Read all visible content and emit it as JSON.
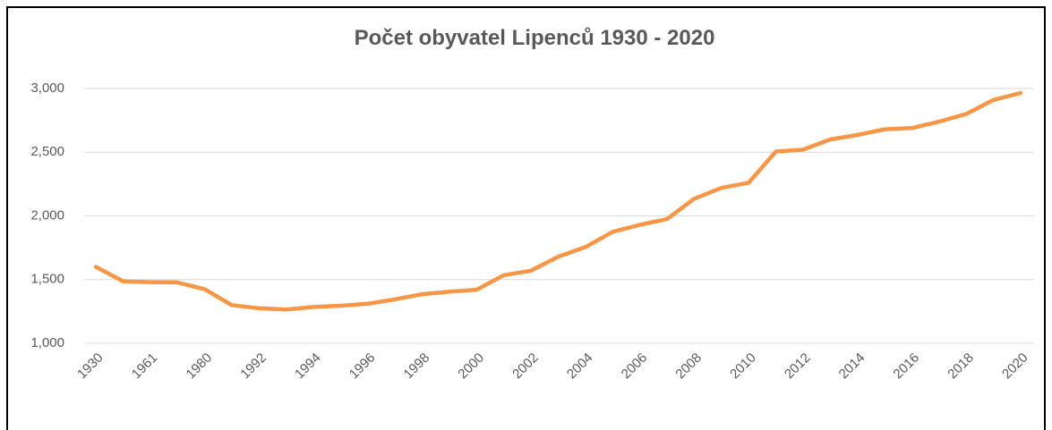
{
  "chart_data": {
    "type": "line",
    "title": "Počet obyvatel Lipenců 1930 - 2020",
    "categories": [
      "1930",
      null,
      "1961",
      null,
      "1980",
      null,
      "1992",
      null,
      "1994",
      null,
      "1996",
      null,
      "1998",
      null,
      "2000",
      null,
      "2002",
      null,
      "2004",
      null,
      "2006",
      null,
      "2008",
      null,
      "2010",
      null,
      "2012",
      null,
      "2014",
      null,
      "2016",
      null,
      "2018",
      null,
      "2020"
    ],
    "series": [
      {
        "name": "Počet obyvatel",
        "color": "#f79646",
        "values": [
          1600,
          1487,
          1480,
          1478,
          1425,
          1300,
          1275,
          1265,
          1285,
          1295,
          1310,
          1345,
          1385,
          1405,
          1420,
          1535,
          1570,
          1680,
          1755,
          1875,
          1930,
          1975,
          2135,
          2220,
          2260,
          2505,
          2520,
          2600,
          2635,
          2680,
          2690,
          2740,
          2800,
          2910,
          2965
        ]
      }
    ],
    "ylim": [
      1000,
      3000
    ],
    "yticks": [
      {
        "value": 1000,
        "label": "1,000"
      },
      {
        "value": 1500,
        "label": "1,500"
      },
      {
        "value": 2000,
        "label": "2,000"
      },
      {
        "value": 2500,
        "label": "2,500"
      },
      {
        "value": 3000,
        "label": "3,000"
      }
    ],
    "grid": true
  }
}
